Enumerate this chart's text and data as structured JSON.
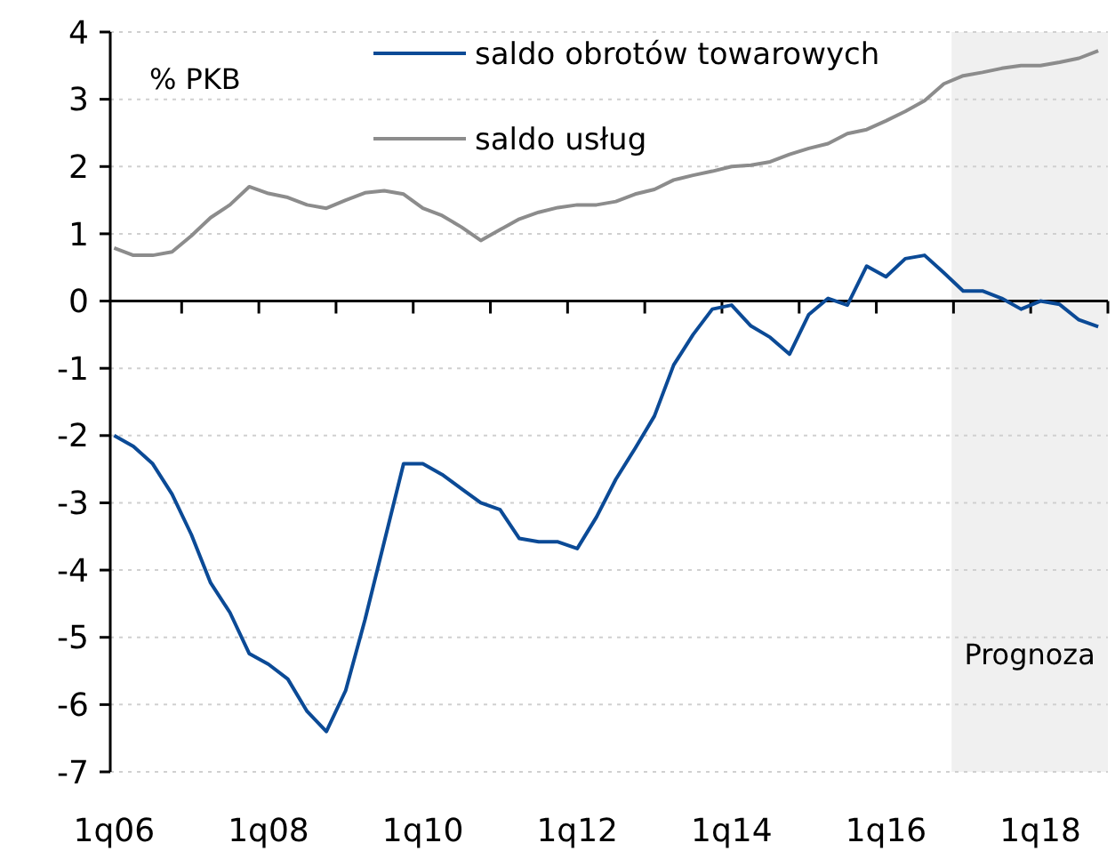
{
  "chart_data": {
    "type": "line",
    "ylabel": "% PKB",
    "categories": [
      "1q06",
      null,
      null,
      null,
      null,
      null,
      null,
      null,
      "1q08",
      null,
      null,
      null,
      null,
      null,
      null,
      null,
      "1q10",
      null,
      null,
      null,
      null,
      null,
      null,
      null,
      "1q12",
      null,
      null,
      null,
      null,
      null,
      null,
      null,
      "1q14",
      null,
      null,
      null,
      null,
      null,
      null,
      null,
      "1q16",
      null,
      null,
      null,
      null,
      null,
      null,
      null,
      "1q18",
      null,
      null,
      null
    ],
    "series": [
      {
        "name": "saldo obrotów towarowych",
        "color": "#0b4a96",
        "values": [
          -2.0,
          -2.16,
          -2.42,
          -2.87,
          -3.47,
          -4.19,
          -4.63,
          -5.24,
          -5.4,
          -5.62,
          -6.1,
          -6.4,
          -5.79,
          -4.74,
          -3.58,
          -2.42,
          -2.42,
          -2.58,
          -2.79,
          -3.0,
          -3.1,
          -3.53,
          -3.58,
          -3.58,
          -3.68,
          -3.21,
          -2.65,
          -2.19,
          -1.71,
          -0.95,
          -0.5,
          -0.12,
          -0.06,
          -0.37,
          -0.54,
          -0.79,
          -0.2,
          0.04,
          -0.06,
          0.52,
          0.36,
          0.63,
          0.68,
          0.42,
          0.15,
          0.15,
          0.04,
          -0.12,
          0.0,
          -0.05,
          -0.28,
          -0.38
        ]
      },
      {
        "name": "saldo usług",
        "color": "#8c8c8c",
        "values": [
          0.79,
          0.68,
          0.68,
          0.73,
          0.97,
          1.24,
          1.43,
          1.7,
          1.6,
          1.54,
          1.43,
          1.38,
          1.5,
          1.61,
          1.64,
          1.59,
          1.38,
          1.27,
          1.1,
          0.9,
          1.06,
          1.22,
          1.32,
          1.39,
          1.43,
          1.43,
          1.48,
          1.59,
          1.66,
          1.8,
          1.87,
          1.93,
          2.0,
          2.02,
          2.07,
          2.18,
          2.27,
          2.34,
          2.49,
          2.55,
          2.68,
          2.82,
          2.98,
          3.23,
          3.35,
          3.4,
          3.46,
          3.5,
          3.5,
          3.55,
          3.61,
          3.72
        ]
      }
    ],
    "ylim": [
      -7,
      4
    ],
    "yticks": [
      -7,
      -6,
      -5,
      -4,
      -3,
      -2,
      -1,
      0,
      1,
      2,
      3,
      4
    ],
    "annotations": [
      "Prognoza"
    ],
    "grid": "y",
    "legend": "top",
    "line_style": "solid",
    "marker": "none"
  }
}
